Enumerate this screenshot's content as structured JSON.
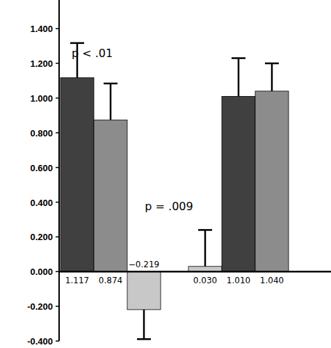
{
  "chart_data": {
    "type": "bar",
    "categories": [
      null,
      null,
      null,
      null,
      null,
      null
    ],
    "values": [
      1.117,
      0.874,
      -0.219,
      0.03,
      1.01,
      1.04
    ],
    "value_labels": [
      "1.117",
      "0.874",
      "−0.219",
      "0.030",
      "1.010",
      "1.040"
    ],
    "errors": [
      0.2,
      0.21,
      0.17,
      0.21,
      0.22,
      0.16
    ],
    "colors": [
      "#404040",
      "#8c8c8c",
      "#c8c8c8",
      "#c8c8c8",
      "#404040",
      "#8c8c8c"
    ],
    "ylim": [
      -0.4,
      1.565
    ],
    "yticks": [
      {
        "value": -0.4,
        "label": "-0.400"
      },
      {
        "value": -0.2,
        "label": "-0.200"
      },
      {
        "value": 0,
        "label": "0.000"
      },
      {
        "value": 0.2,
        "label": "0.200"
      },
      {
        "value": 0.4,
        "label": "0.400"
      },
      {
        "value": 0.6,
        "label": "0.600"
      },
      {
        "value": 0.8,
        "label": "0.800"
      },
      {
        "value": 1.0,
        "label": "1.000"
      },
      {
        "value": 1.2,
        "label": "1.200"
      },
      {
        "value": 1.4,
        "label": "1.400"
      }
    ],
    "annotations": [
      "p < .01",
      "p = .009"
    ],
    "data_labels": true,
    "grid": false,
    "tick_labels": "y"
  }
}
